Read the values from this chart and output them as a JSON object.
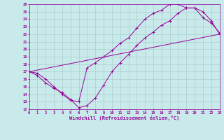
{
  "bg_color": "#c8eaea",
  "line_color": "#990099",
  "grid_color": "#aacccc",
  "ylabel_min": 12,
  "ylabel_max": 26,
  "xlabel_min": 0,
  "xlabel_max": 23,
  "xlabel": "Windchill (Refroidissement éolien,°C)",
  "curve1_x": [
    0,
    1,
    2,
    3,
    4,
    5,
    6,
    7,
    8,
    9,
    10,
    11,
    12,
    13,
    14,
    15,
    16,
    17,
    18,
    19,
    20,
    21,
    22,
    23
  ],
  "curve1_y": [
    17.0,
    16.5,
    15.5,
    14.8,
    14.2,
    13.3,
    12.2,
    12.5,
    13.5,
    15.2,
    17.0,
    18.2,
    19.3,
    20.5,
    21.5,
    22.3,
    23.2,
    23.8,
    24.8,
    25.5,
    25.5,
    24.2,
    23.5,
    22.2
  ],
  "curve2_x": [
    0,
    1,
    2,
    3,
    4,
    5,
    6,
    7,
    8,
    9,
    10,
    11,
    12,
    13,
    14,
    15,
    16,
    17,
    18,
    19,
    20,
    21,
    22,
    23
  ],
  "curve2_y": [
    17.0,
    16.8,
    16.0,
    15.0,
    14.0,
    13.2,
    13.0,
    17.5,
    18.2,
    19.0,
    19.8,
    20.8,
    21.5,
    22.8,
    24.0,
    24.8,
    25.2,
    26.0,
    26.0,
    25.5,
    25.5,
    25.0,
    23.8,
    22.0
  ],
  "curve3_x": [
    0,
    23
  ],
  "curve3_y": [
    17.0,
    22.0
  ]
}
